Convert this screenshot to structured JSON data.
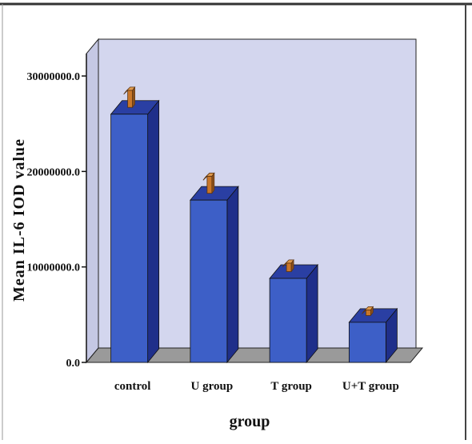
{
  "chart_data": {
    "type": "bar",
    "style": "3d",
    "categories": [
      "control",
      "U group",
      "T group",
      "U+T group"
    ],
    "values": [
      26000000,
      17000000,
      8800000,
      4200000
    ],
    "error_bars": [
      2500000,
      2500000,
      1600000,
      1300000
    ],
    "xlabel": "group",
    "ylabel": "Mean IL-6 IOD value",
    "ylim": [
      0,
      30000000
    ],
    "yticks": [
      0,
      10000000,
      20000000,
      30000000
    ],
    "ytick_labels": [
      "0.0",
      "10000000.0",
      "20000000.0",
      "30000000.0"
    ],
    "grid": false,
    "legend": "none",
    "colors": {
      "bar_front": "#3d5fc7",
      "bar_side": "#1f2f8a",
      "bar_top": "#2a3fa3",
      "error_bar": "#c9772a",
      "back_wall": "#d3d6ee",
      "side_wall": "#c5c8e4",
      "floor": "#9a9a9a"
    }
  }
}
